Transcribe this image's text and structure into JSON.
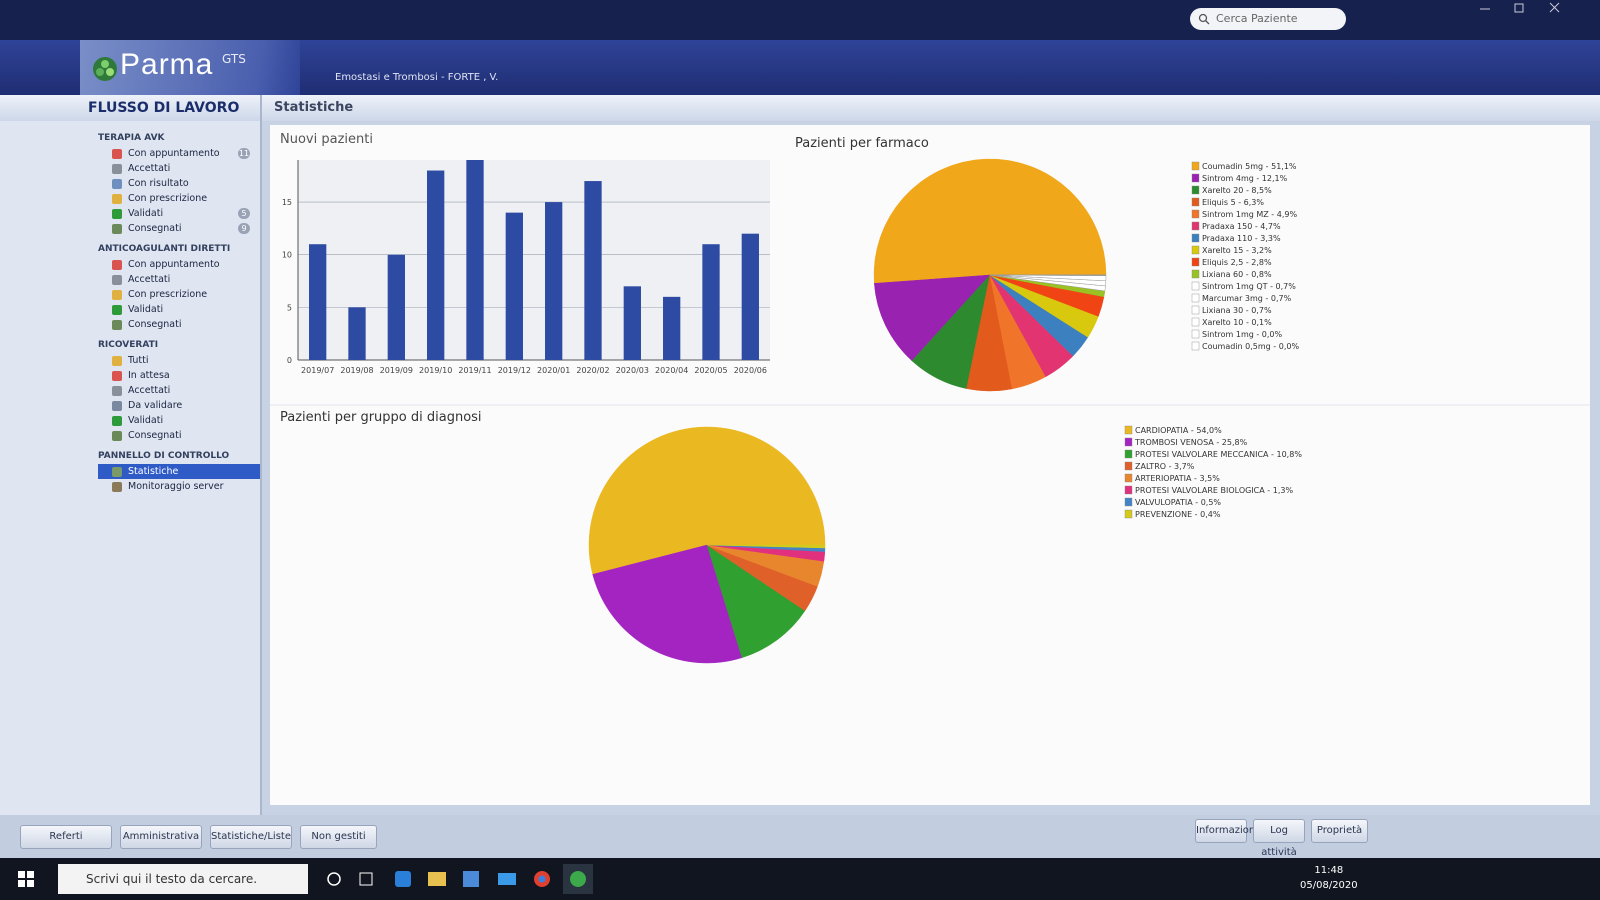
{
  "app": {
    "search_placeholder": "Cerca Paziente",
    "logo": "Parma",
    "logo_sup": "GTS",
    "context": "Emostasi e Trombosi  -  FORTE , V.",
    "sidebar_title": "FLUSSO DI LAVORO",
    "page_title": "Statistiche"
  },
  "sidebar": [
    {
      "group": "TERAPIA AVK",
      "items": [
        {
          "label": "Con appuntamento",
          "badge": 11,
          "icon": "#d9534f"
        },
        {
          "label": "Accettati",
          "icon": "#8a8f99"
        },
        {
          "label": "Con risultato",
          "icon": "#6f8fbf"
        },
        {
          "label": "Con prescrizione",
          "icon": "#e0b040"
        },
        {
          "label": "Validati",
          "badge": 5,
          "icon": "#2e9b3a"
        },
        {
          "label": "Consegnati",
          "badge": 9,
          "icon": "#6a8a5a"
        }
      ]
    },
    {
      "group": "ANTICOAGULANTI DIRETTI",
      "items": [
        {
          "label": "Con appuntamento",
          "icon": "#d9534f"
        },
        {
          "label": "Accettati",
          "icon": "#8a8f99"
        },
        {
          "label": "Con prescrizione",
          "icon": "#e0b040"
        },
        {
          "label": "Validati",
          "icon": "#2e9b3a"
        },
        {
          "label": "Consegnati",
          "icon": "#6a8a5a"
        }
      ]
    },
    {
      "group": "RICOVERATI",
      "items": [
        {
          "label": "Tutti",
          "icon": "#e0b040"
        },
        {
          "label": "In attesa",
          "icon": "#d9534f"
        },
        {
          "label": "Accettati",
          "icon": "#8a8f99"
        },
        {
          "label": "Da validare",
          "icon": "#7a88a0"
        },
        {
          "label": "Validati",
          "icon": "#2e9b3a"
        },
        {
          "label": "Consegnati",
          "icon": "#6a8a5a"
        }
      ]
    },
    {
      "group": "PANNELLO DI CONTROLLO",
      "items": [
        {
          "label": "Statistiche",
          "icon": "#7a9a6a",
          "selected": true
        },
        {
          "label": "Monitoraggio server",
          "icon": "#8a7a5a"
        }
      ]
    }
  ],
  "footer_buttons": {
    "left": [
      "Referti",
      "Amministrativa",
      "Statistiche/Liste",
      "Non gestiti"
    ],
    "right": [
      "Informazioni",
      "Log attività",
      "Proprietà"
    ]
  },
  "taskbar": {
    "search": "Scrivi qui il testo da cercare.",
    "time": "11:48",
    "date": "05/08/2020"
  },
  "chart_data": [
    {
      "type": "bar",
      "title": "Nuovi pazienti",
      "categories": [
        "2019/07",
        "2019/08",
        "2019/09",
        "2019/10",
        "2019/11",
        "2019/12",
        "2020/01",
        "2020/02",
        "2020/03",
        "2020/04",
        "2020/05",
        "2020/06"
      ],
      "values": [
        11,
        5,
        10,
        18,
        19,
        14,
        15,
        17,
        7,
        6,
        11,
        12
      ],
      "color": "#2d4ba3",
      "ylim": [
        0,
        19
      ],
      "yticks": [
        0,
        5,
        10,
        15
      ],
      "grid": true
    },
    {
      "type": "pie",
      "title": "Pazienti per farmaco",
      "categories": [
        "Coumadin 5mg",
        "Sintrom 4mg",
        "Xarelto 20",
        "Eliquis 5",
        "Sintrom 1mg MZ",
        "Pradaxa 150",
        "Pradaxa 110",
        "Xarelto 15",
        "Eliquis 2,5",
        "Lixiana 60",
        "Sintrom 1mg QT",
        "Marcumar 3mg",
        "Lixiana 30",
        "Xarelto 10",
        "Sintrom 1mg",
        "Coumadin 0,5mg"
      ],
      "values": [
        51.1,
        12.1,
        8.5,
        6.3,
        4.9,
        4.7,
        3.3,
        3.2,
        2.8,
        0.8,
        0.7,
        0.7,
        0.7,
        0.1,
        0.0,
        0.0
      ],
      "value_labels": [
        "51,1%",
        "12,1%",
        "8,5%",
        "6,3%",
        "4,9%",
        "4,7%",
        "3,3%",
        "3,2%",
        "2,8%",
        "0,8%",
        "0,7%",
        "0,7%",
        "0,7%",
        "0,1%",
        "0,0%",
        "0,0%"
      ],
      "legend_separator": " - ",
      "colors": [
        "#f0a81a",
        "#9a22b0",
        "#2e8a2e",
        "#e25a1c",
        "#f0752a",
        "#e23470",
        "#3c80c0",
        "#d8c80e",
        "#f04414",
        "#9ac224",
        "#ffffff",
        "#ffffff",
        "#ffffff",
        "#ffffff",
        "#ffffff",
        "#ffffff"
      ]
    },
    {
      "type": "pie",
      "title": "Pazienti per gruppo di diagnosi",
      "categories": [
        "CARDIOPATIA",
        "TROMBOSI VENOSA",
        "PROTESI VALVOLARE MECCANICA",
        "ZALTRO",
        "ARTERIOPATIA",
        "PROTESI VALVOLARE BIOLOGICA",
        "VALVULOPATIA",
        "PREVENZIONE"
      ],
      "values": [
        54.0,
        25.8,
        10.8,
        3.7,
        3.5,
        1.3,
        0.5,
        0.4
      ],
      "value_labels": [
        "54,0%",
        "25,8%",
        "10,8%",
        "3,7%",
        "3,5%",
        "1,3%",
        "0,5%",
        "0,4%"
      ],
      "legend_separator": " - ",
      "colors": [
        "#eab820",
        "#a424c2",
        "#30a030",
        "#e0602a",
        "#e8862e",
        "#e0307e",
        "#4484c4",
        "#d4ca1c"
      ]
    }
  ]
}
